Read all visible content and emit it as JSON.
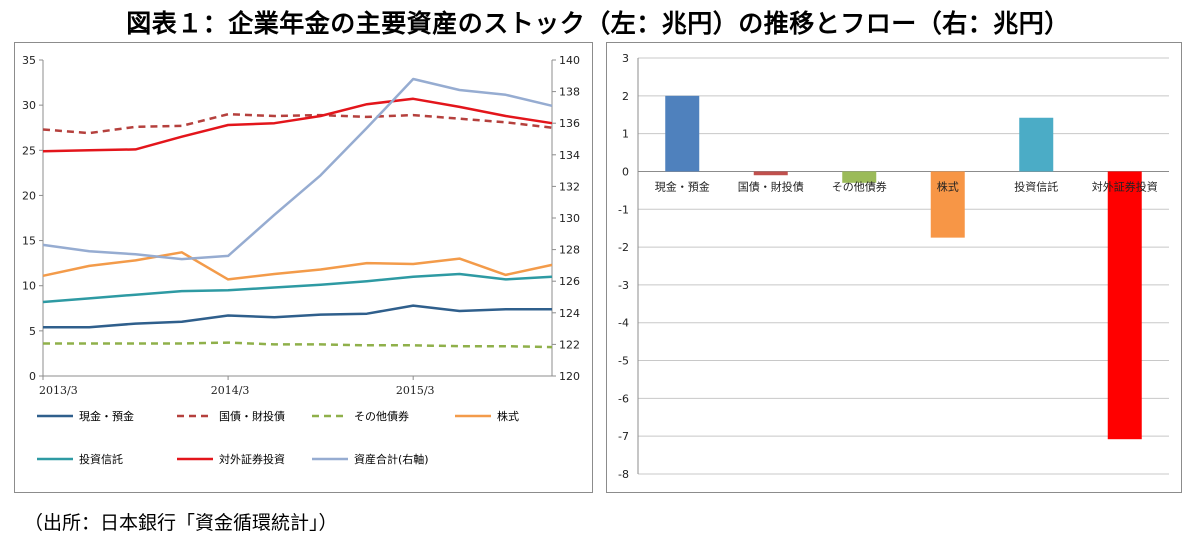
{
  "title": "図表１：企業年金の主要資産のストック（左：兆円）の推移とフロー（右：兆円）",
  "source": "（出所：日本銀行「資金循環統計」）",
  "chart_data": [
    {
      "type": "line",
      "position": "left",
      "x": [
        "2013/3",
        "2013/6",
        "2013/9",
        "2013/12",
        "2014/3",
        "2014/6",
        "2014/9",
        "2014/12",
        "2015/3",
        "2015/6",
        "2015/9",
        "2015/12"
      ],
      "x_tick_labels": [
        "2013/3",
        "2014/3",
        "2015/3"
      ],
      "ylim": [
        0,
        35
      ],
      "y_ticks": [
        0,
        5,
        10,
        15,
        20,
        25,
        30,
        35
      ],
      "y2lim": [
        120,
        140
      ],
      "y2_ticks": [
        120,
        122,
        124,
        126,
        128,
        130,
        132,
        134,
        136,
        138,
        140
      ],
      "legend_position": "bottom",
      "series": [
        {
          "name": "現金・預金",
          "color": "#2f5f8c",
          "dash": "solid",
          "axis": "left",
          "values": [
            5.4,
            5.4,
            5.8,
            6.0,
            6.7,
            6.5,
            6.8,
            6.9,
            7.8,
            7.2,
            7.4,
            7.4
          ]
        },
        {
          "name": "国債・財投債",
          "color": "#b5403d",
          "dash": "dashed",
          "axis": "left",
          "values": [
            27.3,
            26.9,
            27.6,
            27.7,
            29.0,
            28.8,
            28.9,
            28.7,
            28.9,
            28.5,
            28.1,
            27.5
          ]
        },
        {
          "name": "その他債券",
          "color": "#8fb04a",
          "dash": "dashed",
          "axis": "left",
          "values": [
            3.6,
            3.6,
            3.6,
            3.6,
            3.7,
            3.5,
            3.5,
            3.4,
            3.4,
            3.3,
            3.3,
            3.2
          ]
        },
        {
          "name": "株式",
          "color": "#f39b4a",
          "dash": "solid",
          "axis": "left",
          "values": [
            11.1,
            12.2,
            12.8,
            13.7,
            10.7,
            11.3,
            11.8,
            12.5,
            12.4,
            13.0,
            11.2,
            12.3
          ]
        },
        {
          "name": "投資信託",
          "color": "#2e9aa3",
          "dash": "solid",
          "axis": "left",
          "values": [
            8.2,
            8.6,
            9.0,
            9.4,
            9.5,
            9.8,
            10.1,
            10.5,
            11.0,
            11.3,
            10.7,
            11.0
          ]
        },
        {
          "name": "対外証券投資",
          "color": "#e3151b",
          "dash": "solid",
          "axis": "left",
          "values": [
            24.9,
            25.0,
            25.1,
            26.5,
            27.8,
            28.0,
            28.8,
            30.1,
            30.7,
            29.8,
            28.8,
            28.0
          ]
        },
        {
          "name": "資産合計(右軸)",
          "color": "#96acd1",
          "dash": "solid",
          "axis": "right",
          "values": [
            128.3,
            127.9,
            127.7,
            127.4,
            127.6,
            130.2,
            132.7,
            135.7,
            138.8,
            138.1,
            137.8,
            137.1
          ]
        }
      ]
    },
    {
      "type": "bar",
      "position": "right",
      "categories": [
        "現金・預金",
        "国債・財投債",
        "その他債券",
        "株式",
        "投資信託",
        "対外証券投資"
      ],
      "values": [
        2.0,
        -0.1,
        -0.3,
        -1.75,
        1.42,
        -7.08
      ],
      "colors": [
        "#4f81bd",
        "#c0504d",
        "#9bbb59",
        "#f79646",
        "#4bacc6",
        "#ff0000"
      ],
      "ylim": [
        -8,
        3
      ],
      "y_ticks": [
        3,
        2,
        1,
        0,
        -1,
        -2,
        -3,
        -4,
        -5,
        -6,
        -7,
        -8
      ],
      "grid": true
    }
  ]
}
